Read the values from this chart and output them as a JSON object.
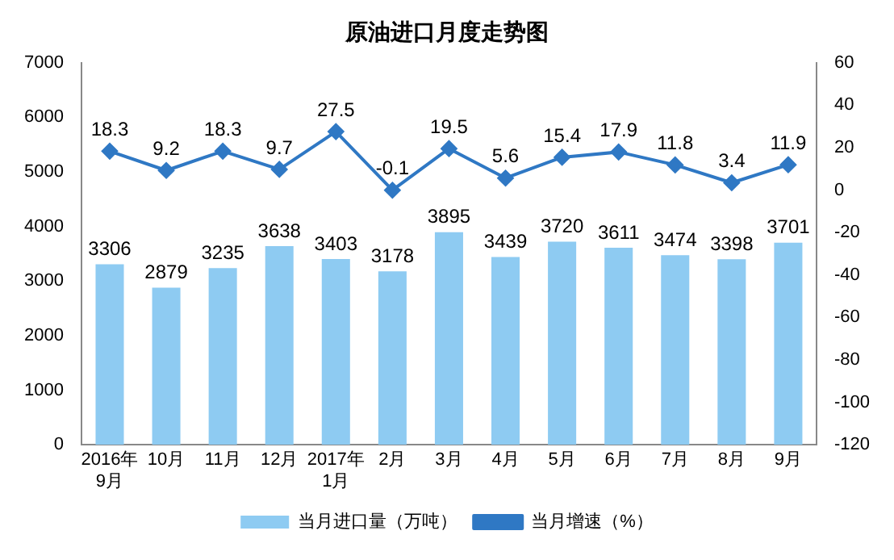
{
  "chart_data": {
    "type": "bar",
    "title": "原油进口月度走势图",
    "categories": [
      "2016年\n9月",
      "10月",
      "11月",
      "12月",
      "2017年\n1月",
      "2月",
      "3月",
      "4月",
      "5月",
      "6月",
      "7月",
      "8月",
      "9月"
    ],
    "series": [
      {
        "name": "当月进口量（万吨）",
        "color": "#8ecbf2",
        "values": [
          3306,
          2879,
          3235,
          3638,
          3403,
          3178,
          3895,
          3439,
          3720,
          3611,
          3474,
          3398,
          3701
        ]
      },
      {
        "name": "当月增速（%）",
        "type": "line",
        "axis": "y2",
        "color": "#2f78c4",
        "values": [
          18.3,
          9.2,
          18.3,
          9.7,
          27.5,
          -0.1,
          19.5,
          5.6,
          15.4,
          17.9,
          11.8,
          3.4,
          11.9
        ]
      }
    ],
    "ylim": [
      0,
      7000
    ],
    "yticks": [
      0,
      1000,
      2000,
      3000,
      4000,
      5000,
      6000,
      7000
    ],
    "y2lim": [
      -120,
      60
    ],
    "y2ticks": [
      -120,
      -100,
      -80,
      -60,
      -40,
      -20,
      0,
      20,
      40,
      60
    ],
    "marker": "diamond",
    "data_labels": true,
    "legend": "bottom",
    "grid": false
  }
}
